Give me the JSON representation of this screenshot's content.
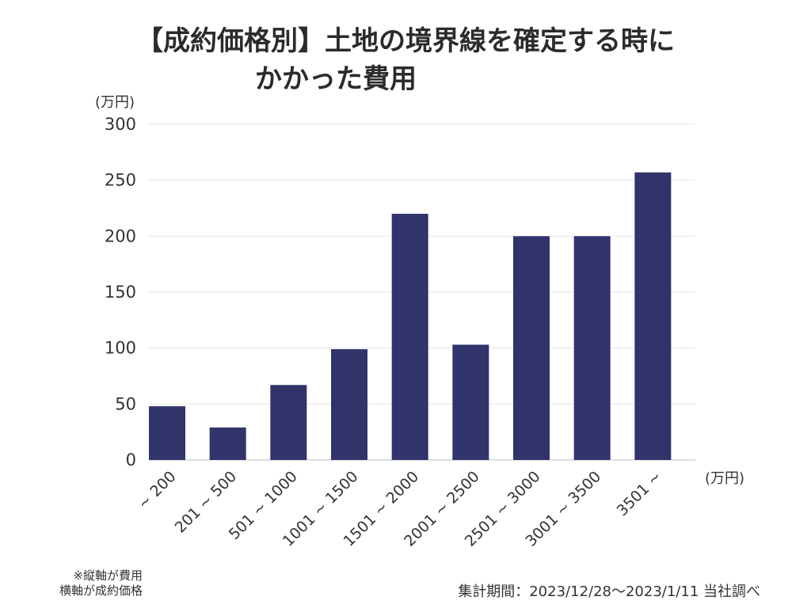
{
  "title": {
    "line1": "【成約価格別】土地の境界線を確定する時に",
    "line2": "かかった費用"
  },
  "y_unit": "(万円)",
  "x_unit": "(万円)",
  "note": {
    "line1": "※縦軸が費用",
    "line2": "横軸が成約価格"
  },
  "period": "集計期間：2023/12/28〜2023/1/11 当社調べ",
  "colors": {
    "bar": "#30346b",
    "grid": "#e6e6e6",
    "axis": "#bbbbbb"
  },
  "chart_data": {
    "type": "bar",
    "title": "【成約価格別】土地の境界線を確定する時にかかった費用",
    "xlabel": "(万円)",
    "ylabel": "(万円)",
    "categories": [
      "~ 200",
      "201 ~ 500",
      "501 ~ 1000",
      "1001 ~ 1500",
      "1501 ~ 2000",
      "2001 ~ 2500",
      "2501 ~ 3000",
      "3001 ~ 3500",
      "3501 ~"
    ],
    "values": [
      48,
      29,
      67,
      99,
      220,
      103,
      200,
      200,
      257
    ],
    "ylim": [
      0,
      300
    ],
    "yticks": [
      0,
      50,
      100,
      150,
      200,
      250,
      300
    ],
    "grid": true
  }
}
